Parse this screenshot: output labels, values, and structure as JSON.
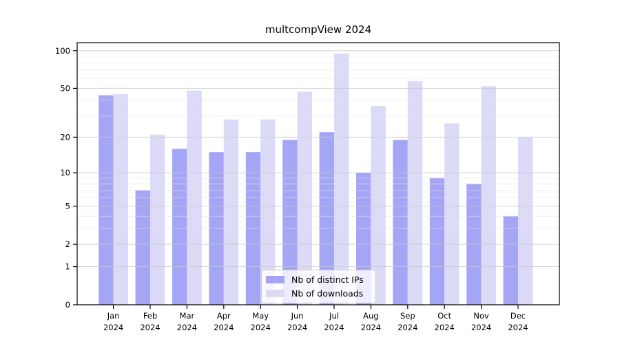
{
  "chart_data": {
    "type": "bar",
    "title": "multcompView 2024",
    "categories": [
      "Jan",
      "Feb",
      "Mar",
      "Apr",
      "May",
      "Jun",
      "Jul",
      "Aug",
      "Sep",
      "Oct",
      "Nov",
      "Dec"
    ],
    "category_sublabel": "2024",
    "series": [
      {
        "name": "Nb of distinct IPs",
        "color": "#a5a5f5",
        "values": [
          44,
          7,
          16,
          15,
          15,
          19,
          22,
          10,
          19,
          9,
          8,
          4
        ]
      },
      {
        "name": "Nb of downloads",
        "color": "#dbdbf8",
        "values": [
          45,
          21,
          48,
          28,
          28,
          47,
          95,
          36,
          57,
          26,
          52,
          20
        ]
      }
    ],
    "yscale": "log1p",
    "ylim": [
      0,
      116
    ],
    "yticks": [
      0,
      1,
      2,
      5,
      10,
      20,
      50,
      100
    ],
    "yminor": [
      3,
      4,
      6,
      7,
      8,
      9,
      30,
      40,
      60,
      70,
      80,
      90
    ],
    "grid": "horizontal",
    "legend_position": "lower-center-inside",
    "colors": {
      "major_grid": "#c9c9c9",
      "minor_grid": "#e2e2e2",
      "spine": "#000000",
      "text": "#000000"
    }
  }
}
